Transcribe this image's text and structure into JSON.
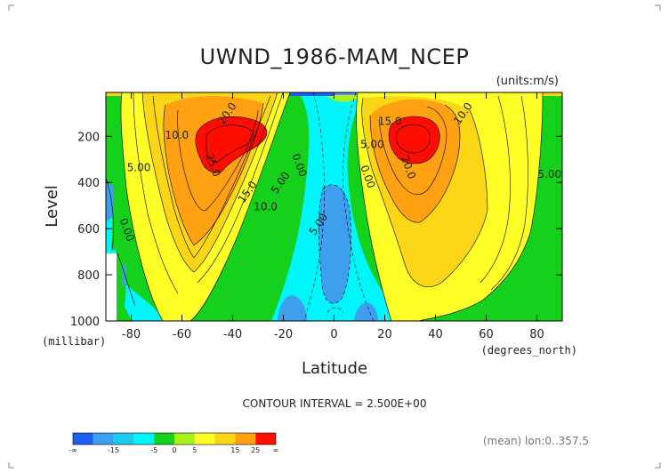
{
  "chart_data": {
    "type": "heatmap",
    "title": "UWND_1986-MAM_NCEP",
    "units_label": "(units:m/s)",
    "xlabel": "Latitude",
    "ylabel": "Level",
    "x_units_label": "(degrees_north)",
    "y_units_label": "(millibar)",
    "xlim": [
      -90,
      90
    ],
    "ylim": [
      1000,
      10
    ],
    "x_ticks": [
      -80,
      -60,
      -40,
      -20,
      0,
      20,
      40,
      60,
      80
    ],
    "y_ticks": [
      200,
      400,
      600,
      800,
      1000
    ],
    "contour_interval_text": "CONTOUR INTERVAL = 2.500E+00",
    "mean_note": "(mean) lon:0..357.5",
    "contour_labels": [
      {
        "text": "10.0",
        "x": -62,
        "y": 210
      },
      {
        "text": "20.0",
        "x": -41,
        "y": 110
      },
      {
        "text": "25.0",
        "x": -49,
        "y": 330
      },
      {
        "text": "5.00",
        "x": -77,
        "y": 350
      },
      {
        "text": "0.00",
        "x": -83,
        "y": 610
      },
      {
        "text": "15.0",
        "x": -33,
        "y": 450
      },
      {
        "text": "10.0",
        "x": -27,
        "y": 520
      },
      {
        "text": "5.00",
        "x": -20,
        "y": 410
      },
      {
        "text": "0.00",
        "x": -15,
        "y": 330
      },
      {
        "text": "5.00",
        "x": 15,
        "y": 250
      },
      {
        "text": "0.00",
        "x": 12,
        "y": 380
      },
      {
        "text": "5.00",
        "x": -5,
        "y": 590
      },
      {
        "text": "15.0",
        "x": 22,
        "y": 150
      },
      {
        "text": "10.0",
        "x": 52,
        "y": 110
      },
      {
        "text": "20.0",
        "x": 28,
        "y": 340
      },
      {
        "text": "5.00",
        "x": 85,
        "y": 380
      }
    ],
    "colorbar": {
      "colors": [
        "#1f5fef",
        "#3f9fef",
        "#19c9ef",
        "#00f5fb",
        "#16d11c",
        "#a6f21c",
        "#ffff27",
        "#fad617",
        "#ffa112",
        "#ff0d00"
      ],
      "labels": [
        "-∞",
        "-15",
        "-5",
        "0",
        "5",
        "15",
        "25",
        "∞"
      ],
      "label_positions": [
        0,
        2,
        4,
        5,
        6,
        8,
        9,
        10
      ]
    }
  }
}
